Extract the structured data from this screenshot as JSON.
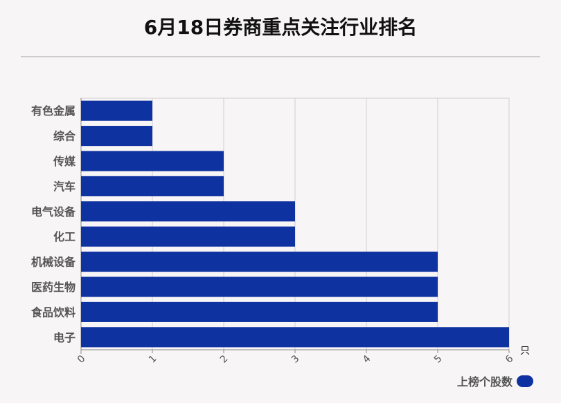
{
  "title": "6月18日券商重点关注行业排名",
  "colors": {
    "bar": "#0e33a1",
    "grid": "#d0d0d0",
    "axis": "#888888",
    "label": "#555555"
  },
  "chart_data": {
    "type": "bar",
    "orientation": "horizontal",
    "categories": [
      "有色金属",
      "综合",
      "传媒",
      "汽车",
      "电气设备",
      "化工",
      "机械设备",
      "医药生物",
      "食品饮料",
      "电子"
    ],
    "series": [
      {
        "name": "上榜个股数",
        "values": [
          1,
          1,
          2,
          2,
          3,
          3,
          5,
          5,
          5,
          6
        ]
      }
    ],
    "xticks": [
      "0",
      "1",
      "2",
      "3",
      "4",
      "5",
      "6"
    ],
    "xlim": [
      0,
      6
    ],
    "xunit": "只",
    "grid": true,
    "legend_position": "bottom-right"
  }
}
